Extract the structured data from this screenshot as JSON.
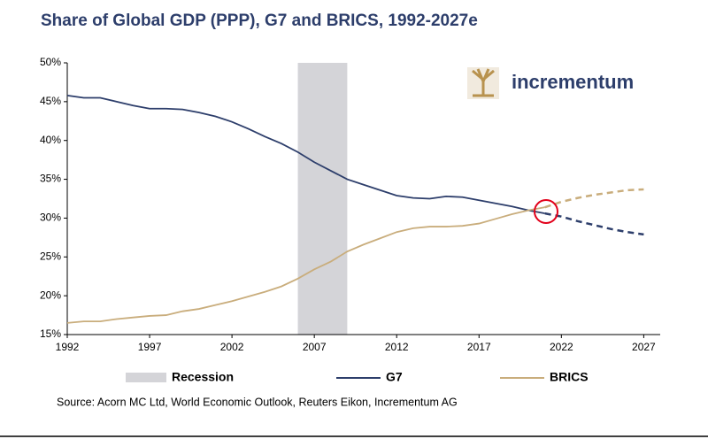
{
  "chart_data": {
    "type": "line",
    "title": "Share of Global GDP (PPP), G7 and BRICS, 1992-2027e",
    "source": "Source: Acorn MC Ltd, World Economic Outlook, Reuters Eikon, Incrementum AG",
    "logo": "incrementum",
    "x": [
      1992,
      1993,
      1994,
      1995,
      1996,
      1997,
      1998,
      1999,
      2000,
      2001,
      2002,
      2003,
      2004,
      2005,
      2006,
      2007,
      2008,
      2009,
      2010,
      2011,
      2012,
      2013,
      2014,
      2015,
      2016,
      2017,
      2018,
      2019,
      2020,
      2021,
      2022,
      2023,
      2024,
      2025,
      2026,
      2027
    ],
    "forecast_start": 2021,
    "recession": {
      "name": "Recession",
      "start": 2006,
      "end": 2009,
      "color": "#d4d4d8"
    },
    "series": [
      {
        "name": "G7",
        "color": "#2d3e6b",
        "values": [
          45.8,
          45.5,
          45.5,
          45.0,
          44.5,
          44.1,
          44.1,
          44.0,
          43.6,
          43.1,
          42.4,
          41.5,
          40.5,
          39.6,
          38.5,
          37.2,
          36.1,
          35.0,
          34.3,
          33.6,
          32.9,
          32.6,
          32.5,
          32.8,
          32.7,
          32.3,
          31.9,
          31.5,
          31.0,
          30.6,
          30.2,
          29.6,
          29.1,
          28.6,
          28.2,
          27.9
        ]
      },
      {
        "name": "BRICS",
        "color": "#c9ad7c",
        "values": [
          16.5,
          16.7,
          16.7,
          17.0,
          17.2,
          17.4,
          17.5,
          18.0,
          18.3,
          18.8,
          19.3,
          19.9,
          20.5,
          21.2,
          22.2,
          23.4,
          24.4,
          25.7,
          26.6,
          27.4,
          28.2,
          28.7,
          28.9,
          28.9,
          29.0,
          29.3,
          29.9,
          30.5,
          31.0,
          31.4,
          32.1,
          32.6,
          33.0,
          33.3,
          33.6,
          33.7
        ]
      }
    ],
    "xlim": [
      1992,
      2028
    ],
    "xticks": [
      1992,
      1997,
      2002,
      2007,
      2012,
      2017,
      2022,
      2027
    ],
    "ylim": [
      15,
      50
    ],
    "yticks": [
      {
        "value": 15,
        "label": "15%"
      },
      {
        "value": 20,
        "label": "20%"
      },
      {
        "value": 25,
        "label": "25%"
      },
      {
        "value": 30,
        "label": "30%"
      },
      {
        "value": 35,
        "label": "35%"
      },
      {
        "value": 40,
        "label": "40%"
      },
      {
        "value": 45,
        "label": "45%"
      },
      {
        "value": 50,
        "label": "50%"
      }
    ]
  }
}
